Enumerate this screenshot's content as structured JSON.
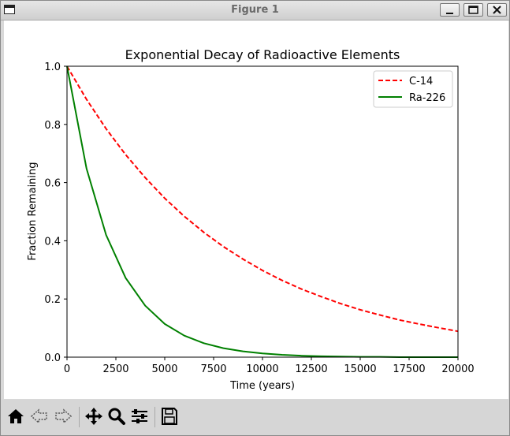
{
  "window": {
    "title": "Figure 1"
  },
  "toolbar": {
    "buttons": [
      "home-icon",
      "back-arrow-icon",
      "forward-arrow-icon",
      "pan-icon",
      "zoom-icon",
      "subplots-icon",
      "save-icon"
    ]
  },
  "chart_data": {
    "type": "line",
    "title": "Exponential Decay of Radioactive Elements",
    "xlabel": "Time (years)",
    "ylabel": "Fraction Remaining",
    "xlim": [
      0,
      20000
    ],
    "ylim": [
      0,
      1
    ],
    "xticks": [
      "0",
      "2500",
      "5000",
      "7500",
      "10000",
      "12500",
      "15000",
      "17500",
      "20000"
    ],
    "yticks": [
      "0.0",
      "0.2",
      "0.4",
      "0.6",
      "0.8",
      "1.0"
    ],
    "grid": false,
    "legend": "top-right",
    "x": [
      0,
      1000,
      2000,
      3000,
      4000,
      5000,
      6000,
      7000,
      8000,
      9000,
      10000,
      11000,
      12000,
      13000,
      14000,
      15000,
      16000,
      17000,
      18000,
      19000,
      20000
    ],
    "series": [
      {
        "name": "C-14",
        "color": "#ff0000",
        "dash": "dashed",
        "values": [
          1.0,
          0.886,
          0.785,
          0.696,
          0.617,
          0.546,
          0.484,
          0.429,
          0.38,
          0.337,
          0.298,
          0.264,
          0.234,
          0.208,
          0.184,
          0.163,
          0.145,
          0.128,
          0.114,
          0.101,
          0.089
        ]
      },
      {
        "name": "Ra-226",
        "color": "#008000",
        "dash": "solid",
        "values": [
          1.0,
          0.648,
          0.42,
          0.272,
          0.177,
          0.114,
          0.074,
          0.048,
          0.031,
          0.02,
          0.013,
          0.008,
          0.005,
          0.003,
          0.002,
          0.001,
          0.001,
          0.0,
          0.0,
          0.0,
          0.0
        ]
      }
    ]
  }
}
